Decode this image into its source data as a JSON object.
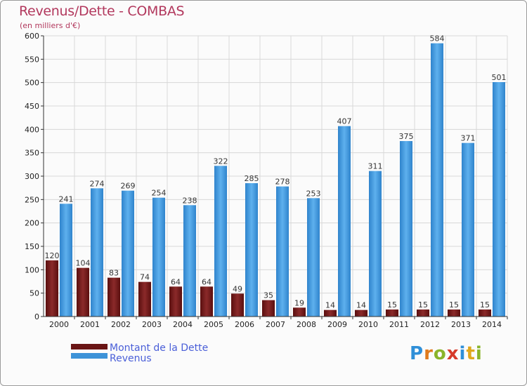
{
  "chart_data": {
    "type": "bar",
    "title": "Revenus/Dette - COMBAS",
    "subtitle": "(en milliers d'€)",
    "categories": [
      "2000",
      "2001",
      "2002",
      "2003",
      "2004",
      "2005",
      "2006",
      "2007",
      "2008",
      "2009",
      "2010",
      "2011",
      "2012",
      "2013",
      "2014"
    ],
    "series": [
      {
        "name": "Montant de la Dette",
        "color": "#7a1e1e",
        "values": [
          120,
          104,
          83,
          74,
          64,
          64,
          49,
          35,
          19,
          14,
          14,
          15,
          15,
          15,
          15
        ]
      },
      {
        "name": "Revenus",
        "color": "#3d93d8",
        "values": [
          241,
          274,
          269,
          254,
          238,
          322,
          285,
          278,
          253,
          407,
          311,
          375,
          584,
          371,
          501
        ]
      }
    ],
    "yticks": [
      0,
      50,
      100,
      150,
      200,
      250,
      300,
      350,
      400,
      450,
      500,
      550,
      600
    ],
    "ylim": [
      0,
      600
    ],
    "grid": true,
    "legend_position": "bottom-left"
  },
  "logo": {
    "text": "Proxiti"
  }
}
